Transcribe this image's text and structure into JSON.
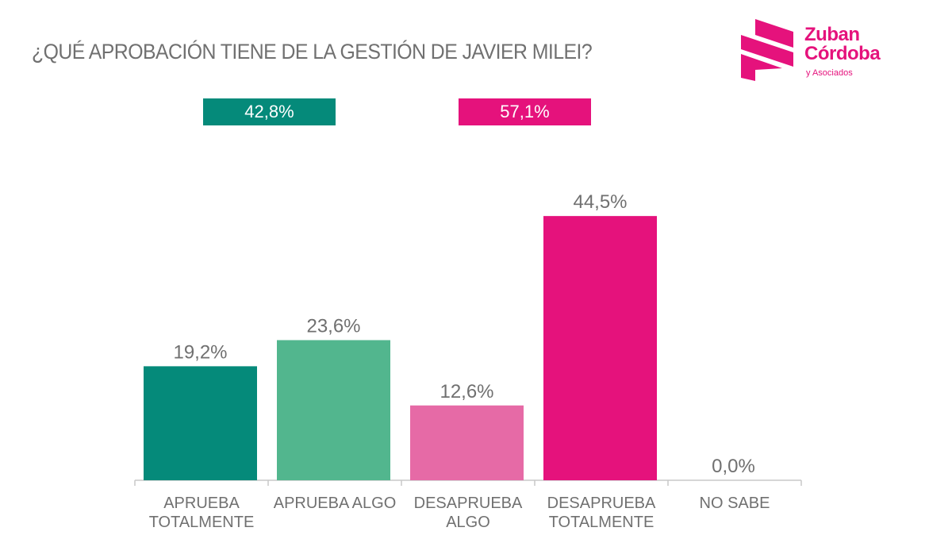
{
  "logo": {
    "line1": "Zuban",
    "line2": "Córdoba",
    "line3": "y Asociados",
    "color": "#e5127c"
  },
  "summary": {
    "approve": {
      "label": "42,8%",
      "value": 42.8,
      "color": "#058a7a"
    },
    "disapprove": {
      "label": "57,1%",
      "value": 57.1,
      "color": "#e5127c"
    }
  },
  "chart_data": {
    "type": "bar",
    "title": "¿QUÉ APROBACIÓN TIENE DE LA GESTIÓN DE JAVIER MILEI?",
    "xlabel": "",
    "ylabel": "",
    "ylim": [
      0,
      50
    ],
    "grid": false,
    "categories": [
      "APRUEBA TOTALMENTE",
      "APRUEBA ALGO",
      "DESAPRUEBA ALGO",
      "DESAPRUEBA TOTALMENTE",
      "NO SABE"
    ],
    "category_lines": [
      [
        "APRUEBA",
        "TOTALMENTE"
      ],
      [
        "APRUEBA ALGO"
      ],
      [
        "DESAPRUEBA",
        "ALGO"
      ],
      [
        "DESAPRUEBA",
        "TOTALMENTE"
      ],
      [
        "NO SABE"
      ]
    ],
    "values": [
      19.2,
      23.6,
      12.6,
      44.5,
      0.0
    ],
    "value_labels": [
      "19,2%",
      "23,6%",
      "12,6%",
      "44,5%",
      "0,0%"
    ],
    "colors": [
      "#058a7a",
      "#52b68e",
      "#e66aa6",
      "#e5127c",
      "#cccccc"
    ],
    "label_color": "#707070",
    "axis_color": "#c8c8c8"
  }
}
